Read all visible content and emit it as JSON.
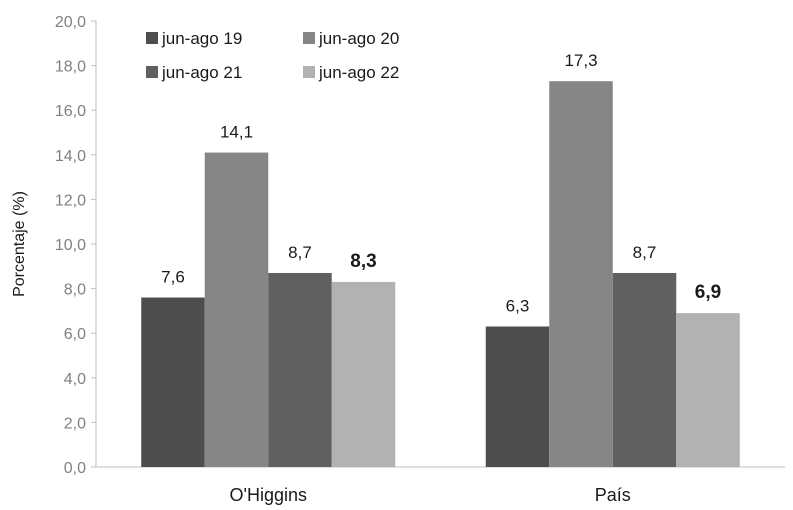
{
  "chart_data": {
    "type": "bar",
    "title": "",
    "xlabel": "",
    "ylabel": "Porcentaje (%)",
    "ylim": [
      0,
      20
    ],
    "yticks": [
      "0,0",
      "2,0",
      "4,0",
      "6,0",
      "8,0",
      "10,0",
      "12,0",
      "14,0",
      "16,0",
      "18,0",
      "20,0"
    ],
    "categories": [
      "O'Higgins",
      "País"
    ],
    "series": [
      {
        "name": "jun-ago 19",
        "color": "#4d4d4d",
        "values": [
          7.6,
          6.3
        ],
        "labels": [
          "7,6",
          "6,3"
        ],
        "bold": false
      },
      {
        "name": "jun-ago 20",
        "color": "#868686",
        "values": [
          14.1,
          17.3
        ],
        "labels": [
          "14,1",
          "17,3"
        ],
        "bold": false
      },
      {
        "name": "jun-ago 21",
        "color": "#606060",
        "values": [
          8.7,
          8.7
        ],
        "labels": [
          "8,7",
          "8,7"
        ],
        "bold": false
      },
      {
        "name": "jun-ago 22",
        "color": "#b2b2b2",
        "values": [
          8.3,
          6.9
        ],
        "labels": [
          "8,3",
          "6,9"
        ],
        "bold": true
      }
    ],
    "grid": false,
    "legend_position": "top-left"
  }
}
